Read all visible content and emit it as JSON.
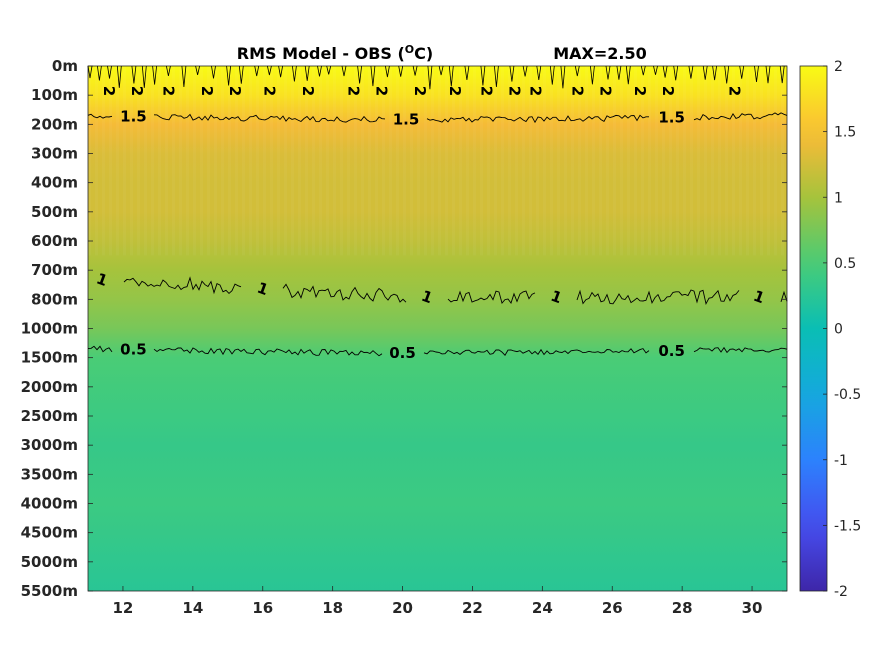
{
  "chart_data": {
    "type": "heatmap",
    "title_prefix": "RMS Model - OBS (",
    "title_sup": "O",
    "title_suffix": "C)",
    "max_label": "MAX=2.50",
    "x_ticks": [
      "12",
      "14",
      "16",
      "18",
      "20",
      "22",
      "24",
      "26",
      "28",
      "30"
    ],
    "x_tick_values": [
      12,
      14,
      16,
      18,
      20,
      22,
      24,
      26,
      28,
      30
    ],
    "xlim": [
      11,
      31
    ],
    "y_ticks": [
      "0m",
      "100m",
      "200m",
      "300m",
      "400m",
      "500m",
      "600m",
      "700m",
      "800m",
      "1000m",
      "1500m",
      "2000m",
      "2500m",
      "3000m",
      "3500m",
      "4000m",
      "4500m",
      "5000m",
      "5500m"
    ],
    "colorbar": {
      "ticks": [
        "2",
        "1.5",
        "1",
        "0.5",
        "0",
        "-0.5",
        "-1",
        "-1.5",
        "-2"
      ],
      "tick_values": [
        2,
        1.5,
        1,
        0.5,
        0,
        -0.5,
        -1,
        -1.5,
        -2
      ],
      "range": [
        -2,
        2
      ],
      "colormap": "parula"
    },
    "depth_profile_values": [
      2.0,
      1.8,
      1.45,
      1.3,
      1.25,
      1.25,
      1.15,
      1.0,
      0.9,
      0.75,
      0.5,
      0.45,
      0.4,
      0.35,
      0.38,
      0.4,
      0.35,
      0.3,
      0.25
    ],
    "contours": [
      {
        "level": 1.5,
        "depth_index": 1.7,
        "labels": [
          "1.5",
          "1.5",
          "1.5"
        ],
        "label_x": [
          12.3,
          20.1,
          27.7
        ]
      },
      {
        "level": 1,
        "depth_index": 7.3,
        "labels": [
          "1",
          "1",
          "1",
          "1",
          "1"
        ],
        "label_x": [
          11.4,
          16,
          20.7,
          24.4,
          30.2
        ]
      },
      {
        "level": 0.5,
        "depth_index": 9.7,
        "labels": [
          "0.5",
          "0.5",
          "0.5"
        ],
        "label_x": [
          12.3,
          20,
          27.7
        ]
      },
      {
        "level": 2,
        "depth_index": 0.8,
        "labels": [
          "2",
          "2",
          "2",
          "2",
          "2",
          "2",
          "2",
          "2",
          "2",
          "2",
          "2",
          "2",
          "2",
          "2",
          "2",
          "2",
          "2",
          "2",
          "2"
        ],
        "label_x": [
          11.6,
          12.4,
          13.3,
          14.4,
          15.2,
          16.2,
          17.3,
          18.6,
          19.4,
          20.5,
          21.5,
          22.4,
          23.2,
          23.8,
          25,
          25.8,
          26.8,
          27.6,
          29.5
        ]
      }
    ]
  }
}
